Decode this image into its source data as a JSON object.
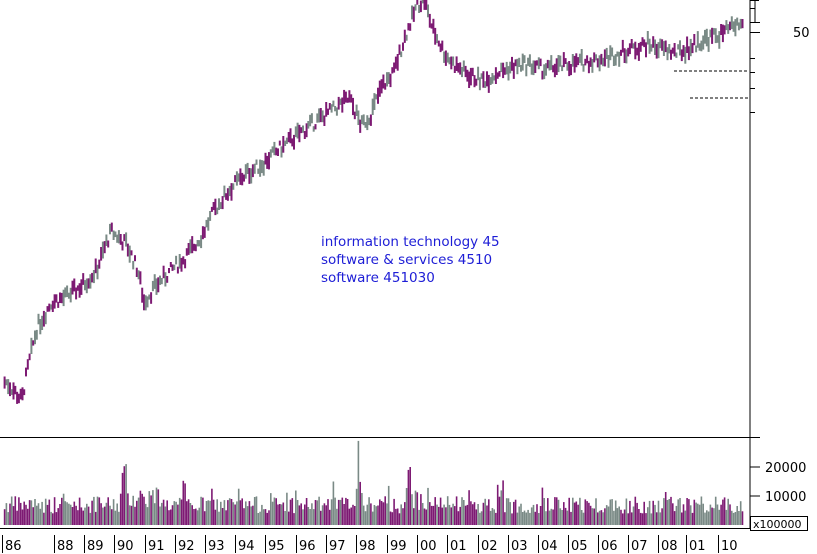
{
  "chart_data": [
    {
      "type": "line",
      "panel": "price",
      "title": "",
      "annotations": [
        "information technology 45",
        "software & services 4510",
        "software 451030"
      ],
      "y_scale": "log",
      "yticks": [
        "50"
      ],
      "ylim": [
        7,
        58
      ],
      "x_labels": [
        "86",
        "88",
        "89",
        "90",
        "91",
        "92",
        "93",
        "94",
        "95",
        "96",
        "97",
        "98",
        "99",
        "00",
        "01",
        "02",
        "03",
        "04",
        "05",
        "06",
        "07",
        "08",
        "01",
        "10"
      ],
      "x": [
        1986,
        1986.5,
        1987,
        1987.5,
        1988,
        1988.5,
        1989,
        1989.5,
        1990,
        1990.4,
        1990.6,
        1991,
        1991.5,
        1992,
        1992.5,
        1993,
        1993.5,
        1994,
        1994.5,
        1995,
        1995.5,
        1996,
        1996.5,
        1997,
        1997.5,
        1997.9,
        1998.2,
        1998.6,
        1999,
        1999.4,
        1999.8,
        2000,
        2000.3,
        2000.7,
        2001,
        2001.5,
        2002,
        2002.5,
        2003,
        2003.5,
        2004,
        2004.5,
        2005,
        2005.5,
        2006,
        2006.5,
        2007,
        2007.5,
        2008,
        2008.5,
        2009,
        2009.5,
        2010,
        2010.5
      ],
      "values": [
        8.5,
        7.8,
        11,
        12.5,
        12.8,
        13.5,
        14.5,
        17.5,
        16.5,
        14.5,
        12.5,
        13.5,
        14.5,
        15.5,
        17,
        19.5,
        21.5,
        23,
        24,
        25.5,
        27,
        28.5,
        30,
        31.5,
        33,
        29,
        30.5,
        35,
        37.5,
        45,
        52,
        53,
        46,
        41,
        39,
        37,
        36,
        37.5,
        38.5,
        39,
        38,
        38.5,
        39,
        39.5,
        40,
        41,
        42,
        43,
        42,
        41,
        42.5,
        44,
        45,
        47
      ]
    },
    {
      "type": "bar",
      "panel": "volume",
      "yticks": [
        "10000",
        "20000"
      ],
      "unit_label": "x100000",
      "ylim": [
        0,
        30000
      ],
      "notable_values": [
        {
          "x": 1990,
          "value": 21000
        },
        {
          "x": 1997.8,
          "value": 29000
        },
        {
          "x": 1999.5,
          "value": 19000
        }
      ]
    }
  ]
}
